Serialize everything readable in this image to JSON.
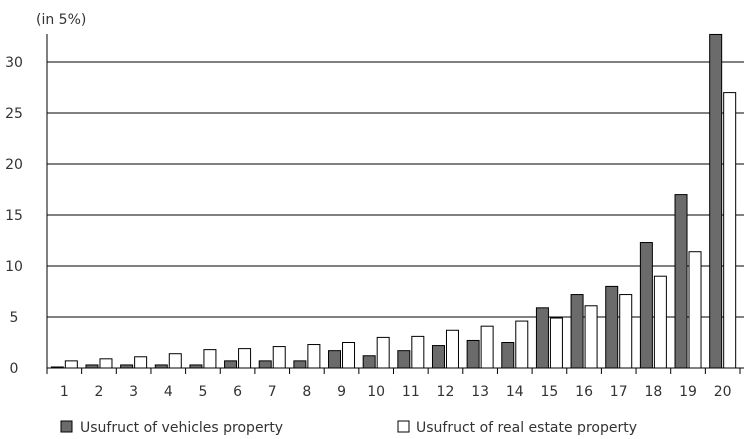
{
  "chart_data": {
    "type": "bar",
    "unit_label": "(in 5%)",
    "categories": [
      "1",
      "2",
      "3",
      "4",
      "5",
      "6",
      "7",
      "8",
      "9",
      "10",
      "11",
      "12",
      "13",
      "14",
      "15",
      "16",
      "17",
      "18",
      "19",
      "20"
    ],
    "series": [
      {
        "name": "Usufruct of vehicles property",
        "color": "#6b6b6b",
        "values": [
          0.1,
          0.3,
          0.3,
          0.3,
          0.3,
          0.7,
          0.7,
          0.7,
          1.7,
          1.2,
          1.7,
          2.2,
          2.7,
          2.5,
          5.9,
          7.2,
          8.0,
          12.3,
          17.0,
          32.7
        ]
      },
      {
        "name": "Usufruct of real estate property",
        "color": "#ffffff",
        "values": [
          0.7,
          0.9,
          1.1,
          1.4,
          1.8,
          1.9,
          2.1,
          2.3,
          2.5,
          3.0,
          3.1,
          3.7,
          4.1,
          4.6,
          4.9,
          6.1,
          7.2,
          9.0,
          11.4,
          27.0
        ]
      }
    ],
    "yticks": [
      "0",
      "5",
      "10",
      "15",
      "20",
      "25",
      "30"
    ],
    "ylim": [
      0,
      35
    ],
    "grid": true,
    "legend_position": "bottom"
  }
}
